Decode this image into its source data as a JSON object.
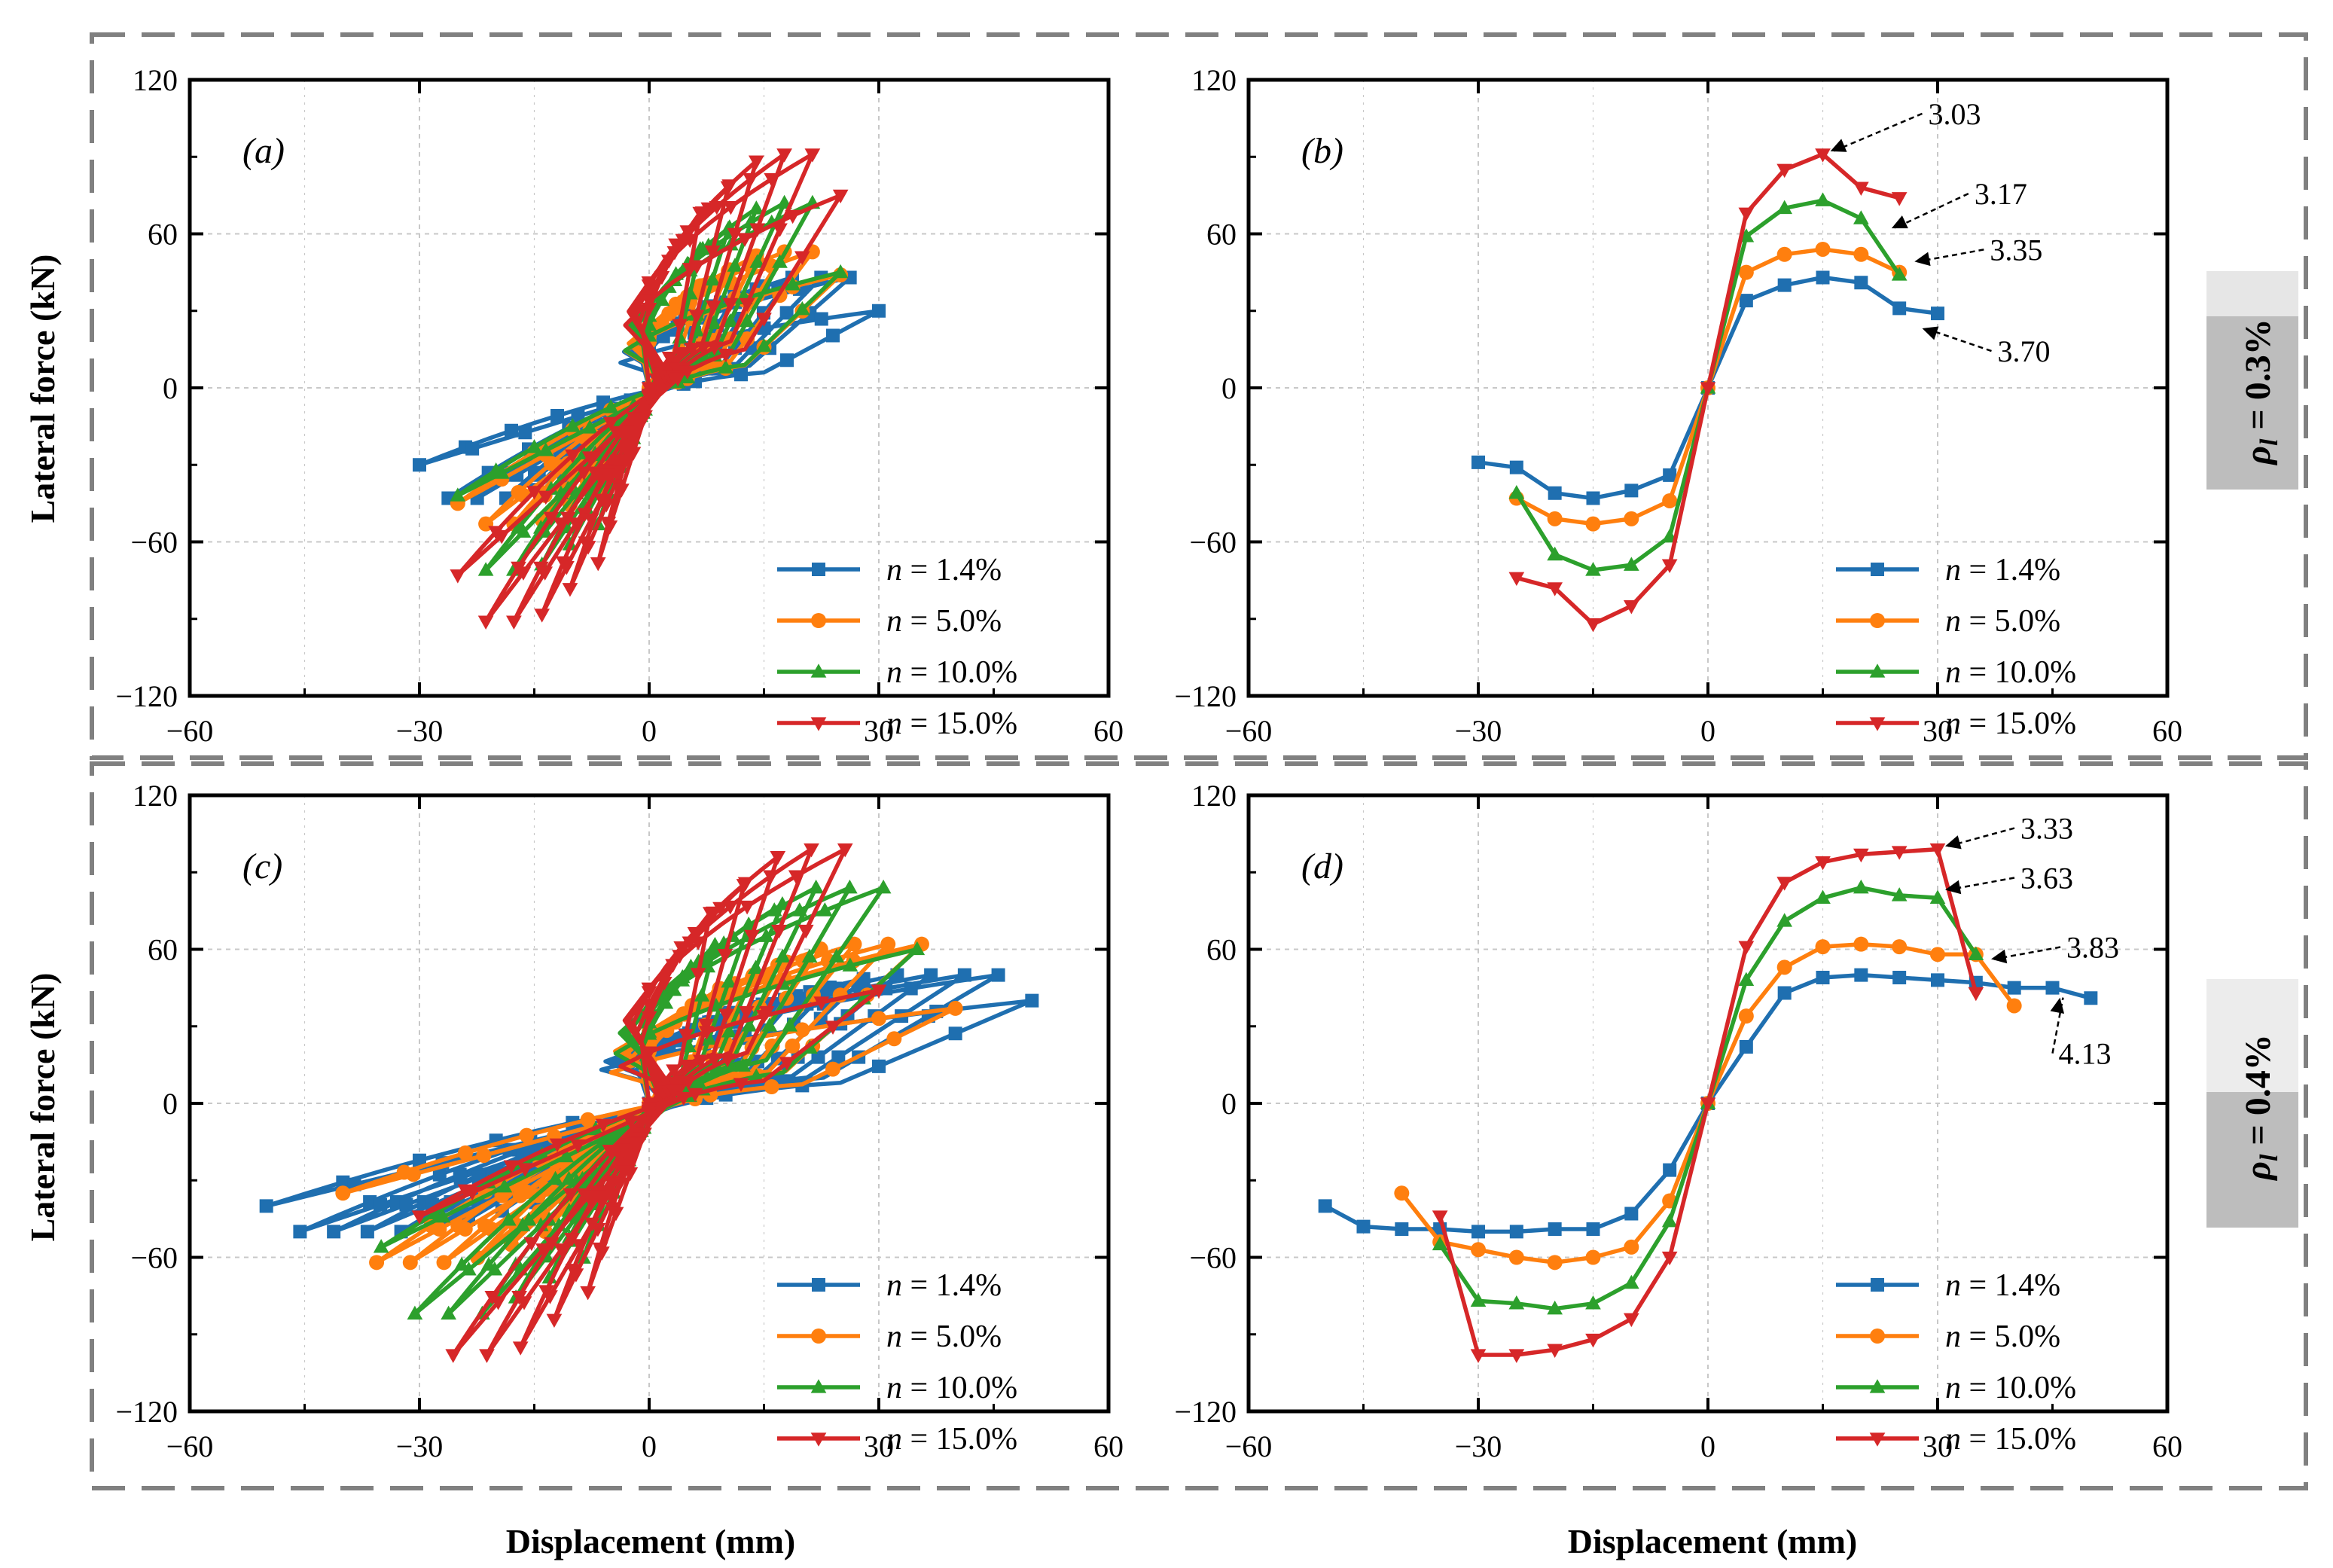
{
  "axis_titles": {
    "y": "Lateral force (kN)",
    "x": "Displacement (mm)"
  },
  "group_labels": [
    {
      "symbol": "ρ",
      "subscript": "l",
      "text": " = 0.3%"
    },
    {
      "symbol": "ρ",
      "subscript": "l",
      "text": " = 0.4%"
    }
  ],
  "legend": [
    {
      "prefix": "n",
      "text": " = 1.4%"
    },
    {
      "prefix": "n",
      "text": " = 5.0%"
    },
    {
      "prefix": "n",
      "text": " = 10.0%"
    },
    {
      "prefix": "n",
      "text": " = 15.0%"
    }
  ],
  "colors": {
    "s14": "#1f6fb0",
    "s50": "#ff7f0e",
    "s100": "#2ca02c",
    "s150": "#d62728",
    "frame": "#808080",
    "grid": "#c8c8c8"
  },
  "chart_data": [
    {
      "id": "a",
      "type": "line",
      "label": "(a)",
      "subtype": "hysteresis",
      "xlabel": "Displacement (mm)",
      "ylabel": "Lateral force (kN)",
      "xlim": [
        -60,
        60
      ],
      "ylim": [
        -120,
        120
      ],
      "xticks": [
        -60,
        -30,
        0,
        30,
        60
      ],
      "yticks": [
        -120,
        -60,
        0,
        60,
        120
      ],
      "grid": true,
      "series": [
        {
          "name": "n = 1.4%",
          "marker": "square",
          "peak_x": 30,
          "peak_pos": 43,
          "peak_neg": -43,
          "residual_pos": 30,
          "residual_neg": -30,
          "cycles": 7
        },
        {
          "name": "n = 5.0%",
          "marker": "circle",
          "peak_x": 25,
          "peak_pos": 53,
          "peak_neg": -53,
          "residual_pos": 44,
          "residual_neg": -45,
          "cycles": 6
        },
        {
          "name": "n = 10.0%",
          "marker": "triangle-up",
          "peak_x": 25,
          "peak_pos": 72,
          "peak_neg": -71,
          "residual_pos": 45,
          "residual_neg": -42,
          "cycles": 6
        },
        {
          "name": "n = 15.0%",
          "marker": "triangle-down",
          "peak_x": 25,
          "peak_pos": 91,
          "peak_neg": -91,
          "residual_pos": 75,
          "residual_neg": -73,
          "cycles": 6
        }
      ]
    },
    {
      "id": "b",
      "type": "line",
      "label": "(b)",
      "subtype": "skeleton",
      "xlabel": "Displacement (mm)",
      "ylabel": "Lateral force (kN)",
      "xlim": [
        -60,
        60
      ],
      "ylim": [
        -120,
        120
      ],
      "xticks": [
        -60,
        -30,
        0,
        30,
        60
      ],
      "yticks": [
        -120,
        -60,
        0,
        60,
        120
      ],
      "grid": true,
      "series": [
        {
          "name": "n = 1.4%",
          "marker": "square",
          "x": [
            -30,
            -25,
            -20,
            -15,
            -10,
            -5,
            0,
            5,
            10,
            15,
            20,
            25,
            30
          ],
          "y": [
            -29,
            -31,
            -41,
            -43,
            -40,
            -34,
            0,
            34,
            40,
            43,
            41,
            31,
            29
          ]
        },
        {
          "name": "n = 5.0%",
          "marker": "circle",
          "x": [
            -25,
            -20,
            -15,
            -10,
            -5,
            0,
            5,
            10,
            15,
            20,
            25
          ],
          "y": [
            -43,
            -51,
            -53,
            -51,
            -44,
            0,
            45,
            52,
            54,
            52,
            45
          ]
        },
        {
          "name": "n = 10.0%",
          "marker": "triangle-up",
          "x": [
            -25,
            -20,
            -15,
            -10,
            -5,
            0,
            5,
            10,
            15,
            20,
            25
          ],
          "y": [
            -41,
            -65,
            -71,
            -69,
            -58,
            0,
            59,
            70,
            73,
            66,
            44
          ]
        },
        {
          "name": "n = 15.0%",
          "marker": "triangle-down",
          "x": [
            -25,
            -20,
            -15,
            -10,
            -5,
            0,
            5,
            10,
            15,
            20,
            25
          ],
          "y": [
            -74,
            -78,
            -92,
            -85,
            -69,
            0,
            68,
            85,
            91,
            78,
            74
          ]
        }
      ],
      "annotations": [
        {
          "text": "3.03",
          "x": 15,
          "y": 91
        },
        {
          "text": "3.17",
          "x": 23,
          "y": 61
        },
        {
          "text": "3.35",
          "x": 26,
          "y": 48
        },
        {
          "text": "3.70",
          "x": 27,
          "y": 22
        }
      ]
    },
    {
      "id": "c",
      "type": "line",
      "label": "(c)",
      "subtype": "hysteresis",
      "xlabel": "Displacement (mm)",
      "ylabel": "Lateral force (kN)",
      "xlim": [
        -60,
        60
      ],
      "ylim": [
        -120,
        120
      ],
      "xticks": [
        -60,
        -30,
        0,
        30,
        60
      ],
      "yticks": [
        -120,
        -60,
        0,
        60,
        120
      ],
      "grid": true,
      "series": [
        {
          "name": "n = 1.4%",
          "marker": "square",
          "peak_x": 50,
          "peak_pos": 50,
          "peak_neg": -50,
          "residual_pos": 40,
          "residual_neg": -40,
          "cycles": 10
        },
        {
          "name": "n = 5.0%",
          "marker": "circle",
          "peak_x": 40,
          "peak_pos": 62,
          "peak_neg": -62,
          "residual_pos": 37,
          "residual_neg": -35,
          "cycles": 8
        },
        {
          "name": "n = 10.0%",
          "marker": "triangle-up",
          "peak_x": 35,
          "peak_pos": 84,
          "peak_neg": -82,
          "residual_pos": 60,
          "residual_neg": -56,
          "cycles": 7
        },
        {
          "name": "n = 15.0%",
          "marker": "triangle-down",
          "peak_x": 30,
          "peak_pos": 99,
          "peak_neg": -98,
          "residual_pos": 44,
          "residual_neg": -44,
          "cycles": 6
        }
      ]
    },
    {
      "id": "d",
      "type": "line",
      "label": "(d)",
      "subtype": "skeleton",
      "xlabel": "Displacement (mm)",
      "ylabel": "Lateral force (kN)",
      "xlim": [
        -60,
        60
      ],
      "ylim": [
        -120,
        120
      ],
      "xticks": [
        -60,
        -30,
        0,
        30,
        60
      ],
      "yticks": [
        -120,
        -60,
        0,
        60,
        120
      ],
      "grid": true,
      "series": [
        {
          "name": "n = 1.4%",
          "marker": "square",
          "x": [
            -50,
            -45,
            -40,
            -35,
            -30,
            -25,
            -20,
            -15,
            -10,
            -5,
            0,
            5,
            10,
            15,
            20,
            25,
            30,
            35,
            40,
            45,
            50
          ],
          "y": [
            -40,
            -48,
            -49,
            -49,
            -50,
            -50,
            -49,
            -49,
            -43,
            -26,
            0,
            22,
            43,
            49,
            50,
            49,
            48,
            47,
            45,
            45,
            41
          ]
        },
        {
          "name": "n = 5.0%",
          "marker": "circle",
          "x": [
            -40,
            -35,
            -30,
            -25,
            -20,
            -15,
            -10,
            -5,
            0,
            5,
            10,
            15,
            20,
            25,
            30,
            35,
            40
          ],
          "y": [
            -35,
            -54,
            -57,
            -60,
            -62,
            -60,
            -56,
            -38,
            0,
            34,
            53,
            61,
            62,
            61,
            58,
            58,
            38
          ]
        },
        {
          "name": "n = 10.0%",
          "marker": "triangle-up",
          "x": [
            -35,
            -30,
            -25,
            -20,
            -15,
            -10,
            -5,
            0,
            5,
            10,
            15,
            20,
            25,
            30,
            35
          ],
          "y": [
            -55,
            -77,
            -78,
            -80,
            -78,
            -70,
            -46,
            0,
            48,
            71,
            80,
            84,
            81,
            80,
            58
          ]
        },
        {
          "name": "n = 15.0%",
          "marker": "triangle-down",
          "x": [
            -35,
            -30,
            -25,
            -20,
            -15,
            -10,
            -5,
            0,
            5,
            10,
            15,
            20,
            25,
            30,
            35
          ],
          "y": [
            -44,
            -98,
            -98,
            -96,
            -92,
            -84,
            -60,
            0,
            61,
            86,
            94,
            97,
            98,
            99,
            43
          ]
        }
      ],
      "annotations": [
        {
          "text": "3.33",
          "x": 30,
          "y": 99
        },
        {
          "text": "3.63",
          "x": 30,
          "y": 82
        },
        {
          "text": "3.83",
          "x": 36,
          "y": 55
        },
        {
          "text": "4.13",
          "x": 45,
          "y": 40
        }
      ]
    }
  ]
}
